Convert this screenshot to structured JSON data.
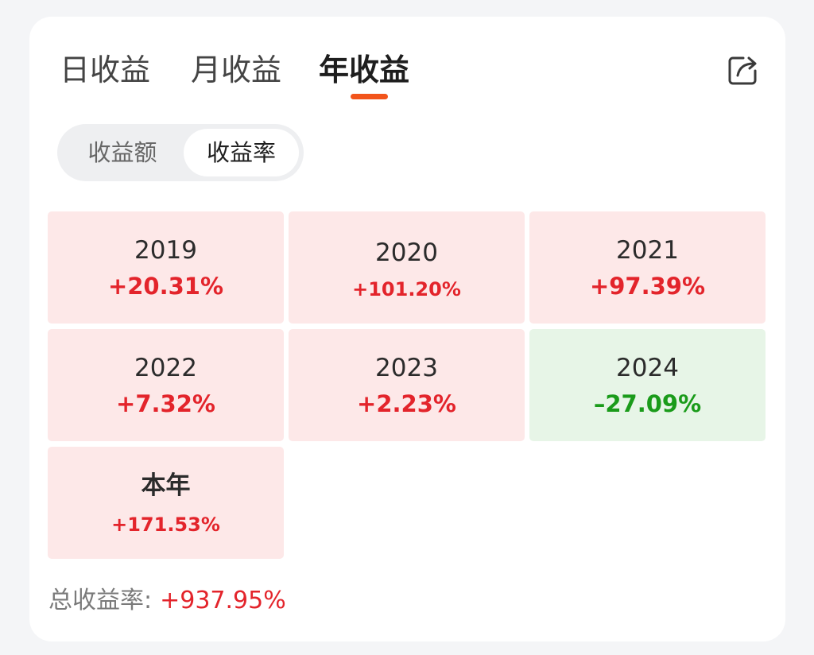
{
  "tabs": [
    {
      "label": "日收益",
      "active": false
    },
    {
      "label": "月收益",
      "active": false
    },
    {
      "label": "年收益",
      "active": true
    }
  ],
  "share_icon": "share-icon",
  "segment": {
    "options": [
      "收益额",
      "收益率"
    ],
    "selected": "收益率"
  },
  "cells": [
    {
      "year": "2019",
      "value": "+20.31%",
      "trend": "up"
    },
    {
      "year": "2020",
      "value": "+101.20%",
      "trend": "up"
    },
    {
      "year": "2021",
      "value": "+97.39%",
      "trend": "up"
    },
    {
      "year": "2022",
      "value": "+7.32%",
      "trend": "up"
    },
    {
      "year": "2023",
      "value": "+2.23%",
      "trend": "up"
    },
    {
      "year": "2024",
      "value": "–27.09%",
      "trend": "down"
    },
    {
      "year": "本年",
      "value": "+171.53%",
      "trend": "up"
    }
  ],
  "total": {
    "label": "总收益率:",
    "value": "+937.95%"
  },
  "colors": {
    "accent": "#f2541b",
    "up": "#e3242b",
    "down": "#1a9b1a",
    "up_bg": "#fde8e8",
    "down_bg": "#e7f5e7"
  }
}
